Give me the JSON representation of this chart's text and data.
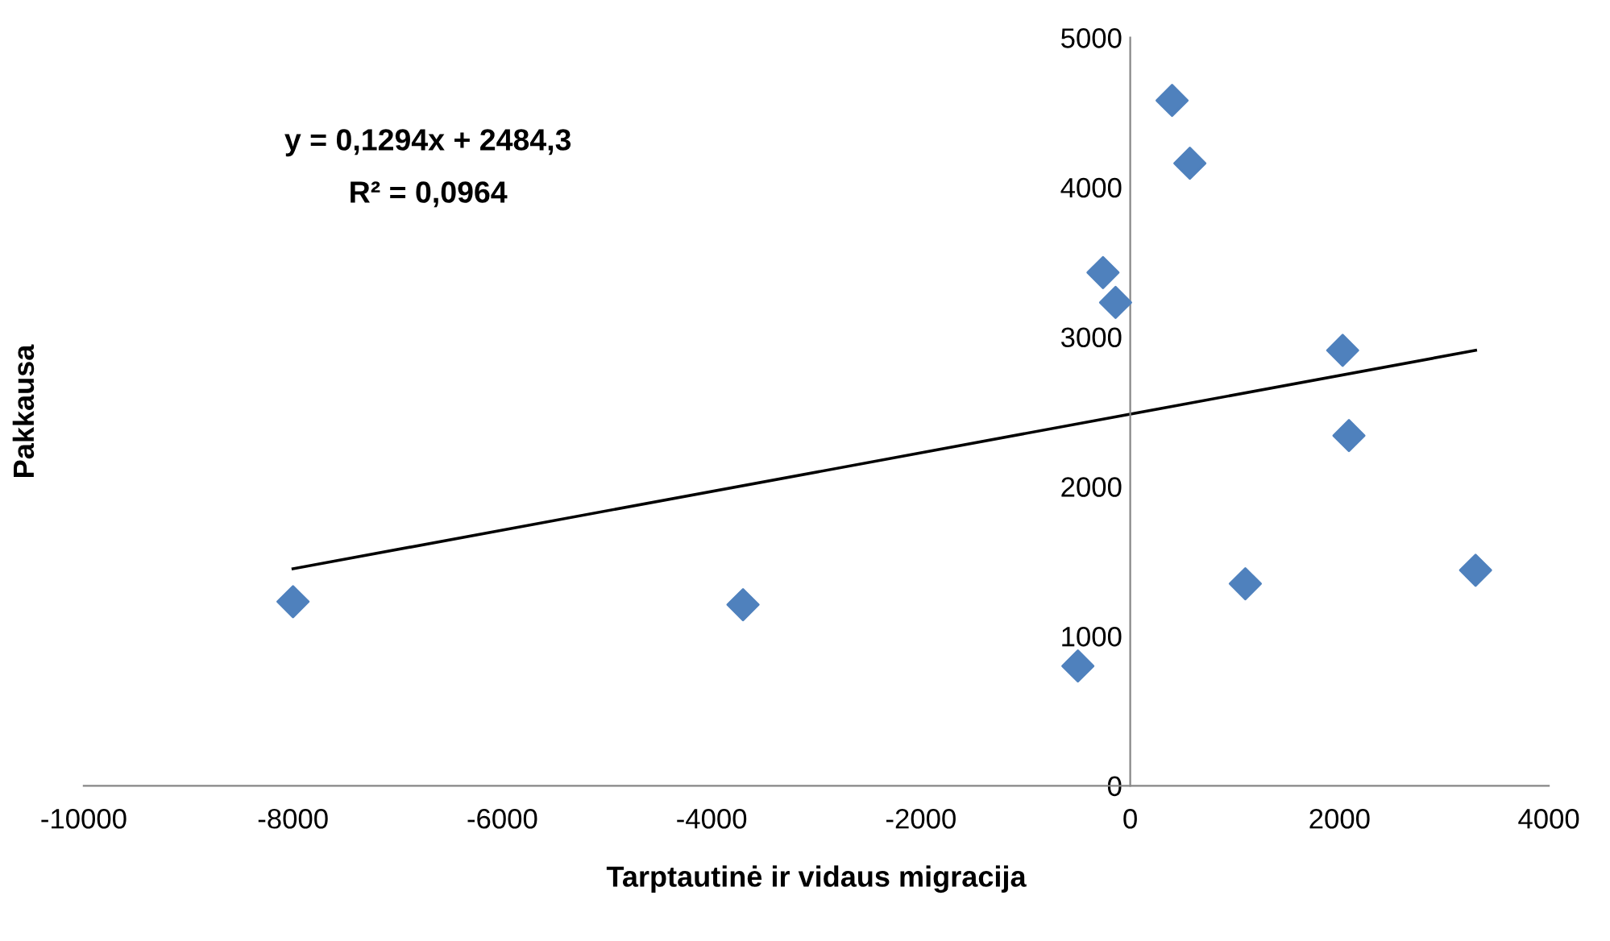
{
  "chart_data": {
    "type": "scatter",
    "xlabel": "Tarptautinė ir vidaus migracija",
    "ylabel": "Pakkausa",
    "xlim": [
      -10000,
      4000
    ],
    "ylim": [
      0,
      5000
    ],
    "xticks": [
      -10000,
      -8000,
      -6000,
      -4000,
      -2000,
      0,
      2000,
      4000
    ],
    "yticks": [
      0,
      1000,
      2000,
      3000,
      4000,
      5000
    ],
    "grid": false,
    "legend": false,
    "series": [
      {
        "color": "#4f81bd",
        "marker": "diamond",
        "x": [
          -8000,
          -3700,
          -500,
          -260,
          -140,
          400,
          570,
          1100,
          2030,
          2090,
          3300
        ],
        "values": [
          1230,
          1210,
          800,
          3430,
          3230,
          4580,
          4160,
          1350,
          2910,
          2340,
          1440
        ]
      },
      {
        "type": "line",
        "color": "#000000",
        "x": [
          -8000,
          3300
        ],
        "values": [
          1450,
          2910
        ]
      }
    ],
    "annotations": [
      "y = 0,1294x + 2484,3",
      "R² = 0,0964"
    ]
  }
}
